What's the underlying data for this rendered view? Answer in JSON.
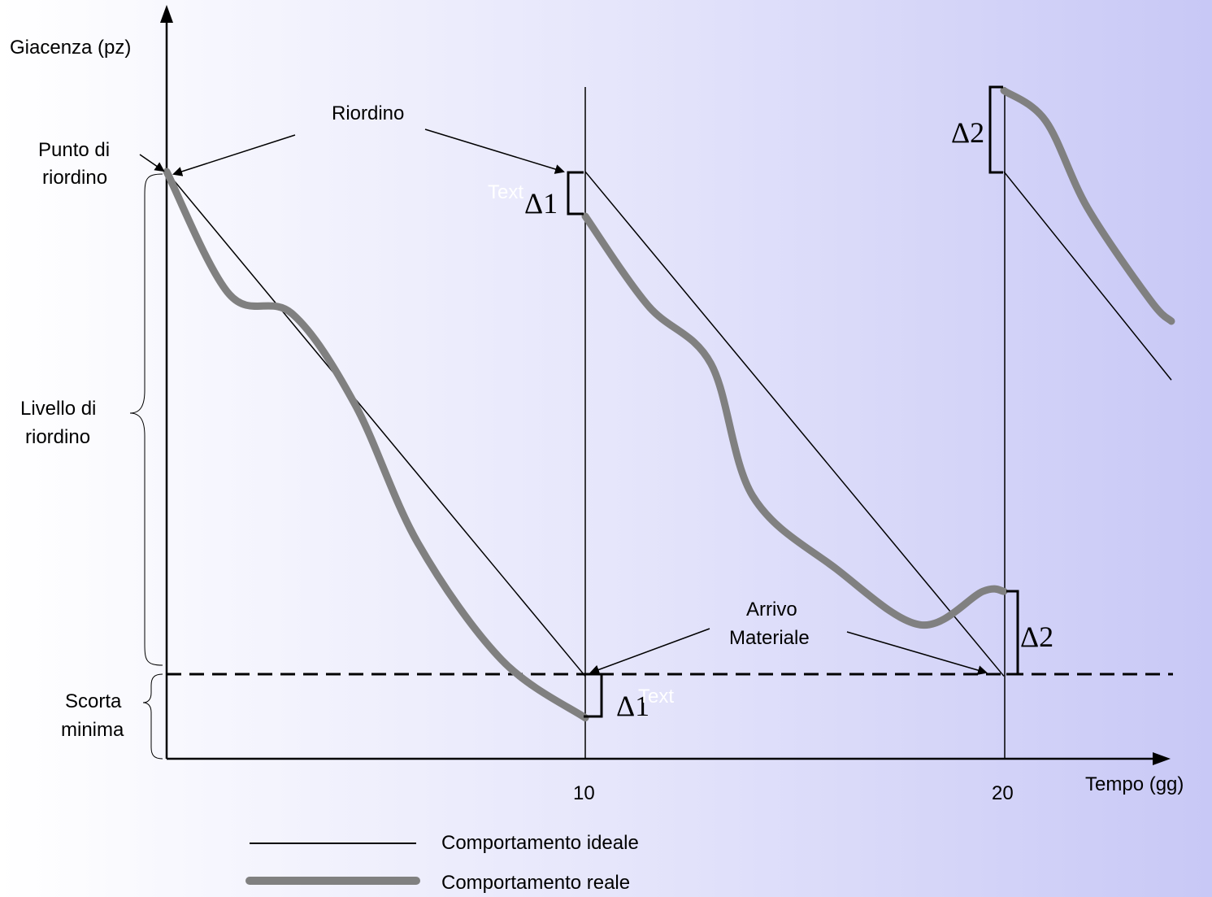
{
  "chart_data": {
    "type": "line",
    "title": "",
    "xlabel": "Tempo (gg)",
    "ylabel": "Giacenza (pz)",
    "x_ticks": [
      "10",
      "20"
    ],
    "xlim": [
      0,
      24
    ],
    "ylim": [
      0,
      100
    ],
    "series": [
      {
        "name": "Comportamento ideale",
        "segments": [
          [
            [
              0,
              78.9
            ],
            [
              10,
              11.1
            ]
          ],
          [
            [
              10,
              78.9
            ],
            [
              20,
              11.1
            ]
          ],
          [
            [
              20,
              78.9
            ],
            [
              24,
              50.9
            ]
          ]
        ]
      },
      {
        "name": "Comportamento reale",
        "segments": [
          [
            [
              0,
              78.9
            ],
            [
              1.5,
              62.4
            ],
            [
              3,
              59.8
            ],
            [
              4.5,
              47.6
            ],
            [
              6,
              29.0
            ],
            [
              8,
              13.3
            ],
            [
              10,
              5.5
            ]
          ],
          [
            [
              10,
              72.9
            ],
            [
              11.5,
              60.9
            ],
            [
              13,
              53.1
            ],
            [
              14,
              35.3
            ],
            [
              16,
              25.5
            ],
            [
              18,
              18.0
            ],
            [
              19.5,
              22.5
            ],
            [
              20,
              22.5
            ]
          ],
          [
            [
              20,
              89.8
            ],
            [
              21,
              85.7
            ],
            [
              22,
              74.0
            ],
            [
              23.5,
              61.6
            ],
            [
              24,
              58.8
            ]
          ]
        ]
      }
    ],
    "legend": [
      {
        "label": "Comportamento ideale",
        "style": "thin-black"
      },
      {
        "label": "Comportamento reale",
        "style": "thick-gray"
      }
    ],
    "annotations": {
      "riordino": "Riordino",
      "punto_di_riordino": [
        "Punto di",
        "riordino"
      ],
      "livello_di_riordino": [
        "Livello di",
        "riordino"
      ],
      "scorta_minima": [
        "Scorta",
        "minima"
      ],
      "arrivo_materiale": [
        "Arrivo",
        "Materiale"
      ],
      "delta1": "Δ1",
      "delta2": "Δ2",
      "placeholder_text": "Text"
    },
    "colors": {
      "ideal": "#000000",
      "real": "#808080",
      "axes": "#000000"
    }
  }
}
